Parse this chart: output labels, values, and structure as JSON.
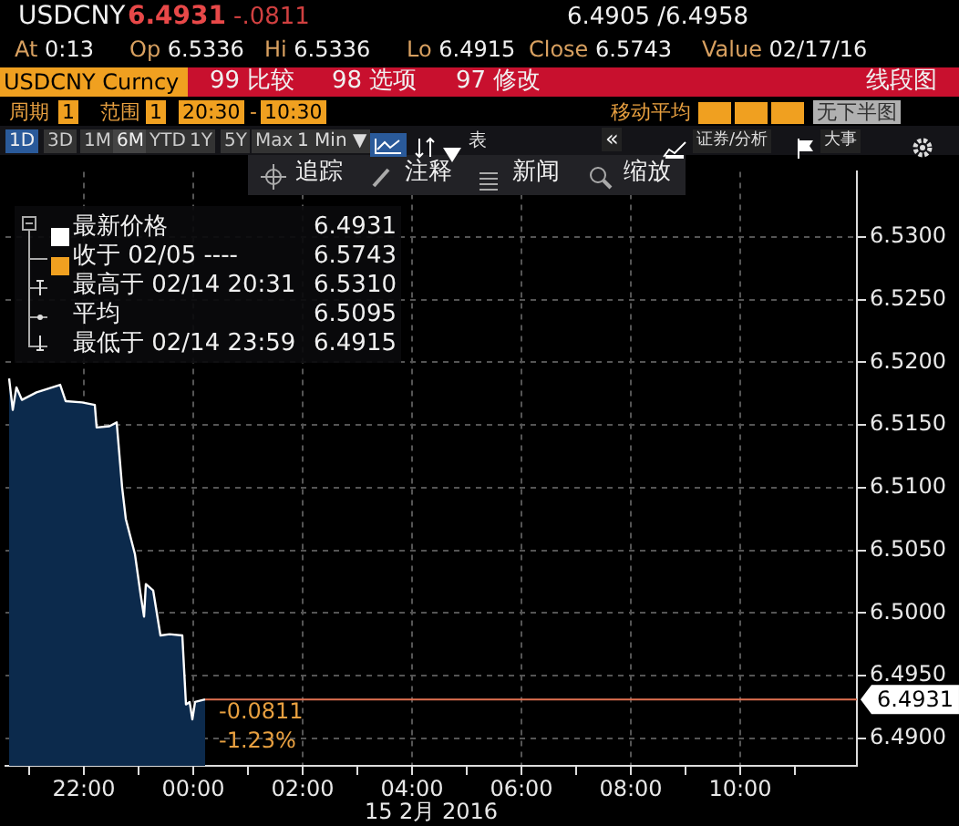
{
  "chart_data": {
    "type": "area",
    "color": "#ffffff",
    "x": [
      "2016-02-14T20:38",
      "2016-02-14T20:42",
      "2016-02-14T20:46",
      "2016-02-14T20:52",
      "2016-02-14T21:08",
      "2016-02-14T21:34",
      "2016-02-14T21:40",
      "2016-02-14T21:58",
      "2016-02-14T22:12",
      "2016-02-14T22:14",
      "2016-02-14T22:28",
      "2016-02-14T22:36",
      "2016-02-14T22:42",
      "2016-02-14T22:46",
      "2016-02-14T22:56",
      "2016-02-14T23:02",
      "2016-02-14T23:06",
      "2016-02-14T23:08",
      "2016-02-14T23:16",
      "2016-02-14T23:24",
      "2016-02-14T23:34",
      "2016-02-14T23:48",
      "2016-02-14T23:52",
      "2016-02-14T23:56",
      "2016-02-14T23:59",
      "2016-02-15T00:02",
      "2016-02-15T00:13"
    ],
    "values": [
      6.5187,
      6.5162,
      6.518,
      6.517,
      6.5176,
      6.5182,
      6.5169,
      6.5168,
      6.5166,
      6.5148,
      6.5149,
      6.5152,
      6.51,
      6.5075,
      6.5047,
      6.5016,
      6.4997,
      6.5023,
      6.5018,
      6.4982,
      6.4983,
      6.4982,
      6.4927,
      6.4929,
      6.4915,
      6.4929,
      6.4931
    ],
    "xlim": [
      "2016-02-14T20:34",
      "2016-02-15T12:08"
    ],
    "ylim": [
      6.4878,
      6.5352
    ],
    "xticks": [
      {
        "value": "2016-02-14T21:00",
        "label": null
      },
      {
        "value": "2016-02-14T22:00",
        "label": "22:00"
      },
      {
        "value": "2016-02-14T23:00",
        "label": null
      },
      {
        "value": "2016-02-15T00:00",
        "label": "00:00"
      },
      {
        "value": "2016-02-15T01:00",
        "label": null
      },
      {
        "value": "2016-02-15T02:00",
        "label": "02:00"
      },
      {
        "value": "2016-02-15T03:00",
        "label": null
      },
      {
        "value": "2016-02-15T04:00",
        "label": "04:00"
      },
      {
        "value": "2016-02-15T05:00",
        "label": null
      },
      {
        "value": "2016-02-15T06:00",
        "label": "06:00"
      },
      {
        "value": "2016-02-15T07:00",
        "label": null
      },
      {
        "value": "2016-02-15T08:00",
        "label": "08:00"
      },
      {
        "value": "2016-02-15T09:00",
        "label": null
      },
      {
        "value": "2016-02-15T10:00",
        "label": "10:00"
      },
      {
        "value": "2016-02-15T11:00",
        "label": null
      }
    ],
    "yticks": [
      {
        "value": 6.49,
        "label": "6.4900"
      },
      {
        "value": 6.495,
        "label": "6.4950"
      },
      {
        "value": 6.5,
        "label": "6.5000"
      },
      {
        "value": 6.505,
        "label": "6.5050"
      },
      {
        "value": 6.51,
        "label": "6.5100"
      },
      {
        "value": 6.515,
        "label": "6.5150"
      },
      {
        "value": 6.52,
        "label": "6.5200"
      },
      {
        "value": 6.525,
        "label": "6.5250"
      },
      {
        "value": 6.53,
        "label": "6.5300"
      }
    ],
    "grid": true,
    "xlabel": "15 2月 2016",
    "ref_lines": [
      {
        "axis": "y",
        "value": 6.4931,
        "label": "6.4931",
        "color": "#e07050"
      }
    ],
    "annotations": [
      "USDCNY",
      "6.4931",
      "-.0811",
      "6.4905 /6.4958",
      "At 0:13",
      "Op 6.5336",
      "Hi 6.5336",
      "Lo 6.4915",
      "Close 6.5743",
      "Value 02/17/16",
      "USDCNY Curncy",
      "99 比较",
      "98 选项",
      "97 修改",
      "线段图",
      "周期",
      "1",
      "范围",
      "1",
      "20:30",
      "-",
      "10:30",
      "移动平均",
      "无下半图",
      "1D",
      "3D",
      "1M",
      "6M",
      "YTD",
      "1Y",
      "5Y",
      "Max",
      "1 Min ▼",
      "表",
      "«",
      "证券/分析",
      "大事",
      "追踪",
      "注释",
      "新闻",
      "缩放",
      "最新价格",
      "6.4931",
      "收于 02/05 ----",
      "6.5743",
      "最高于 02/14 20:31",
      "6.5310",
      "平均",
      "6.5095",
      "最低于 02/14 23:59",
      "6.4915",
      "-0.0811",
      "-1.23%"
    ]
  }
}
